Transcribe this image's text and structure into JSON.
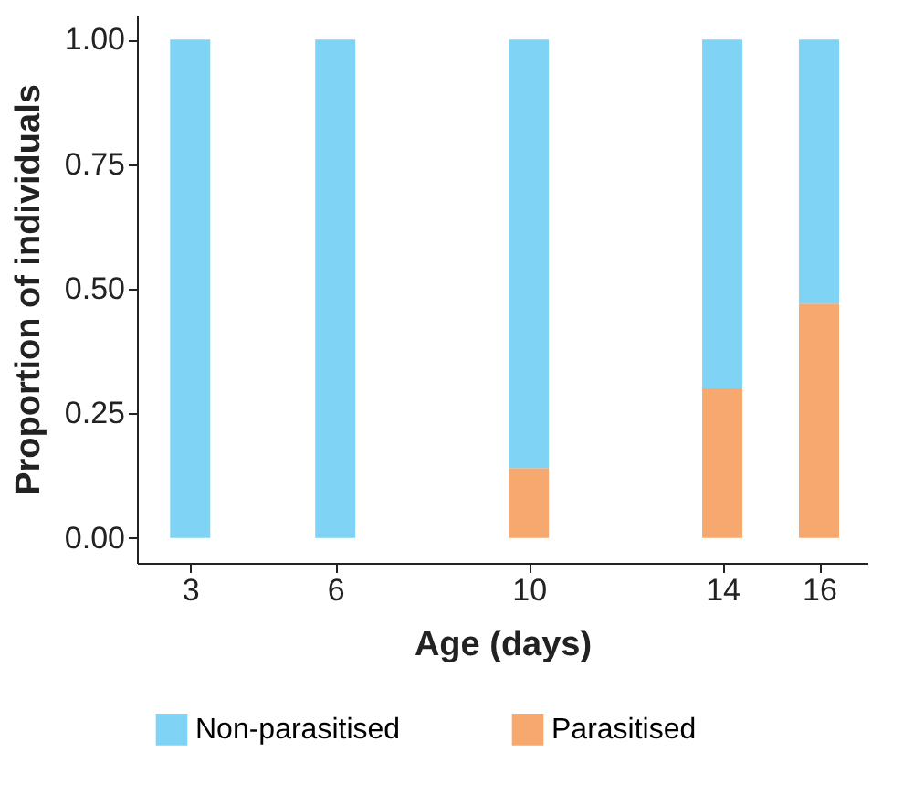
{
  "chart_data": {
    "type": "bar",
    "stacked": true,
    "xlabel": "Age (days)",
    "ylabel": "Proportion of individuals",
    "x": [
      3,
      6,
      10,
      14,
      16
    ],
    "series": [
      {
        "name": "Parasitised",
        "color": "#f7a86e",
        "values": [
          0,
          0,
          0.14,
          0.3,
          0.47
        ]
      },
      {
        "name": "Non-parasitised",
        "color": "#7fd3f5",
        "values": [
          1,
          1,
          0.86,
          0.7,
          0.53
        ]
      }
    ],
    "xlim": [
      1.9,
      17
    ],
    "xticks": [
      3,
      6,
      10,
      14,
      16
    ],
    "ylim": [
      -0.05,
      1.05
    ],
    "yticks": [
      {
        "value": 0,
        "label": "0.00"
      },
      {
        "value": 0.25,
        "label": "0.25"
      },
      {
        "value": 0.5,
        "label": "0.50"
      },
      {
        "value": 0.75,
        "label": "0.75"
      },
      {
        "value": 1,
        "label": "1.00"
      }
    ],
    "grid": false,
    "legend": "bottom"
  }
}
